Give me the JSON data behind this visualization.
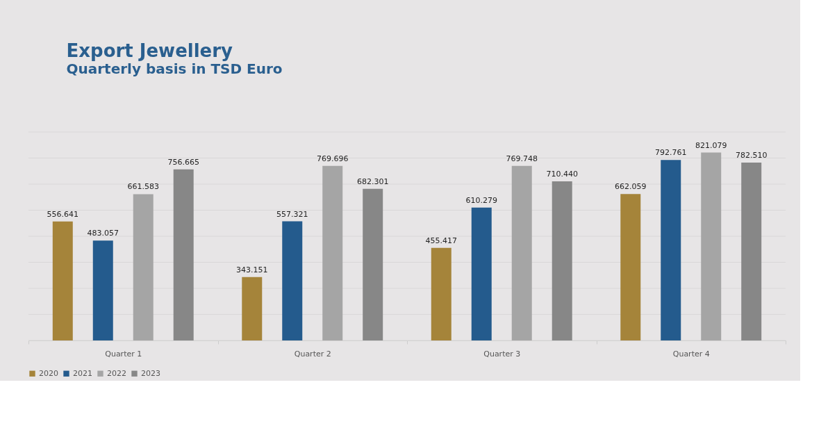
{
  "chart_data": {
    "type": "bar",
    "title": "Export Jewellery",
    "subtitle": "Quarterly basis in TSD Euro",
    "categories": [
      "Quarter 1",
      "Quarter 2",
      "Quarter 3",
      "Quarter 4"
    ],
    "series": [
      {
        "name": "2020",
        "color": "#a5843a",
        "values": [
          556.641,
          343.151,
          455.417,
          662.059
        ],
        "value_labels": [
          "556.641",
          "343.151",
          "455.417",
          "662.059"
        ]
      },
      {
        "name": "2021",
        "color": "#245b8d",
        "values": [
          483.057,
          557.321,
          610.279,
          792.761
        ],
        "value_labels": [
          "483.057",
          "557.321",
          "610.279",
          "792.761"
        ]
      },
      {
        "name": "2022",
        "color": "#a5a5a5",
        "values": [
          661.583,
          769.696,
          769.748,
          821.079
        ],
        "value_labels": [
          "661.583",
          "769.696",
          "769.748",
          "821.079"
        ]
      },
      {
        "name": "2023",
        "color": "#878787",
        "values": [
          756.665,
          682.301,
          710.44,
          782.51
        ],
        "value_labels": [
          "756.665",
          "682.301",
          "710.440",
          "782.510"
        ]
      }
    ],
    "ylim": [
      100,
      900
    ],
    "yticks": [
      {
        "value": 100,
        "label": null
      },
      {
        "value": 200,
        "label": null
      },
      {
        "value": 300,
        "label": null
      },
      {
        "value": 400,
        "label": null
      },
      {
        "value": 500,
        "label": null
      },
      {
        "value": 600,
        "label": null
      },
      {
        "value": 700,
        "label": null
      },
      {
        "value": 800,
        "label": null
      },
      {
        "value": 900,
        "label": null
      }
    ],
    "tick_labels": "x",
    "grid": "y",
    "legend": "bottom"
  }
}
